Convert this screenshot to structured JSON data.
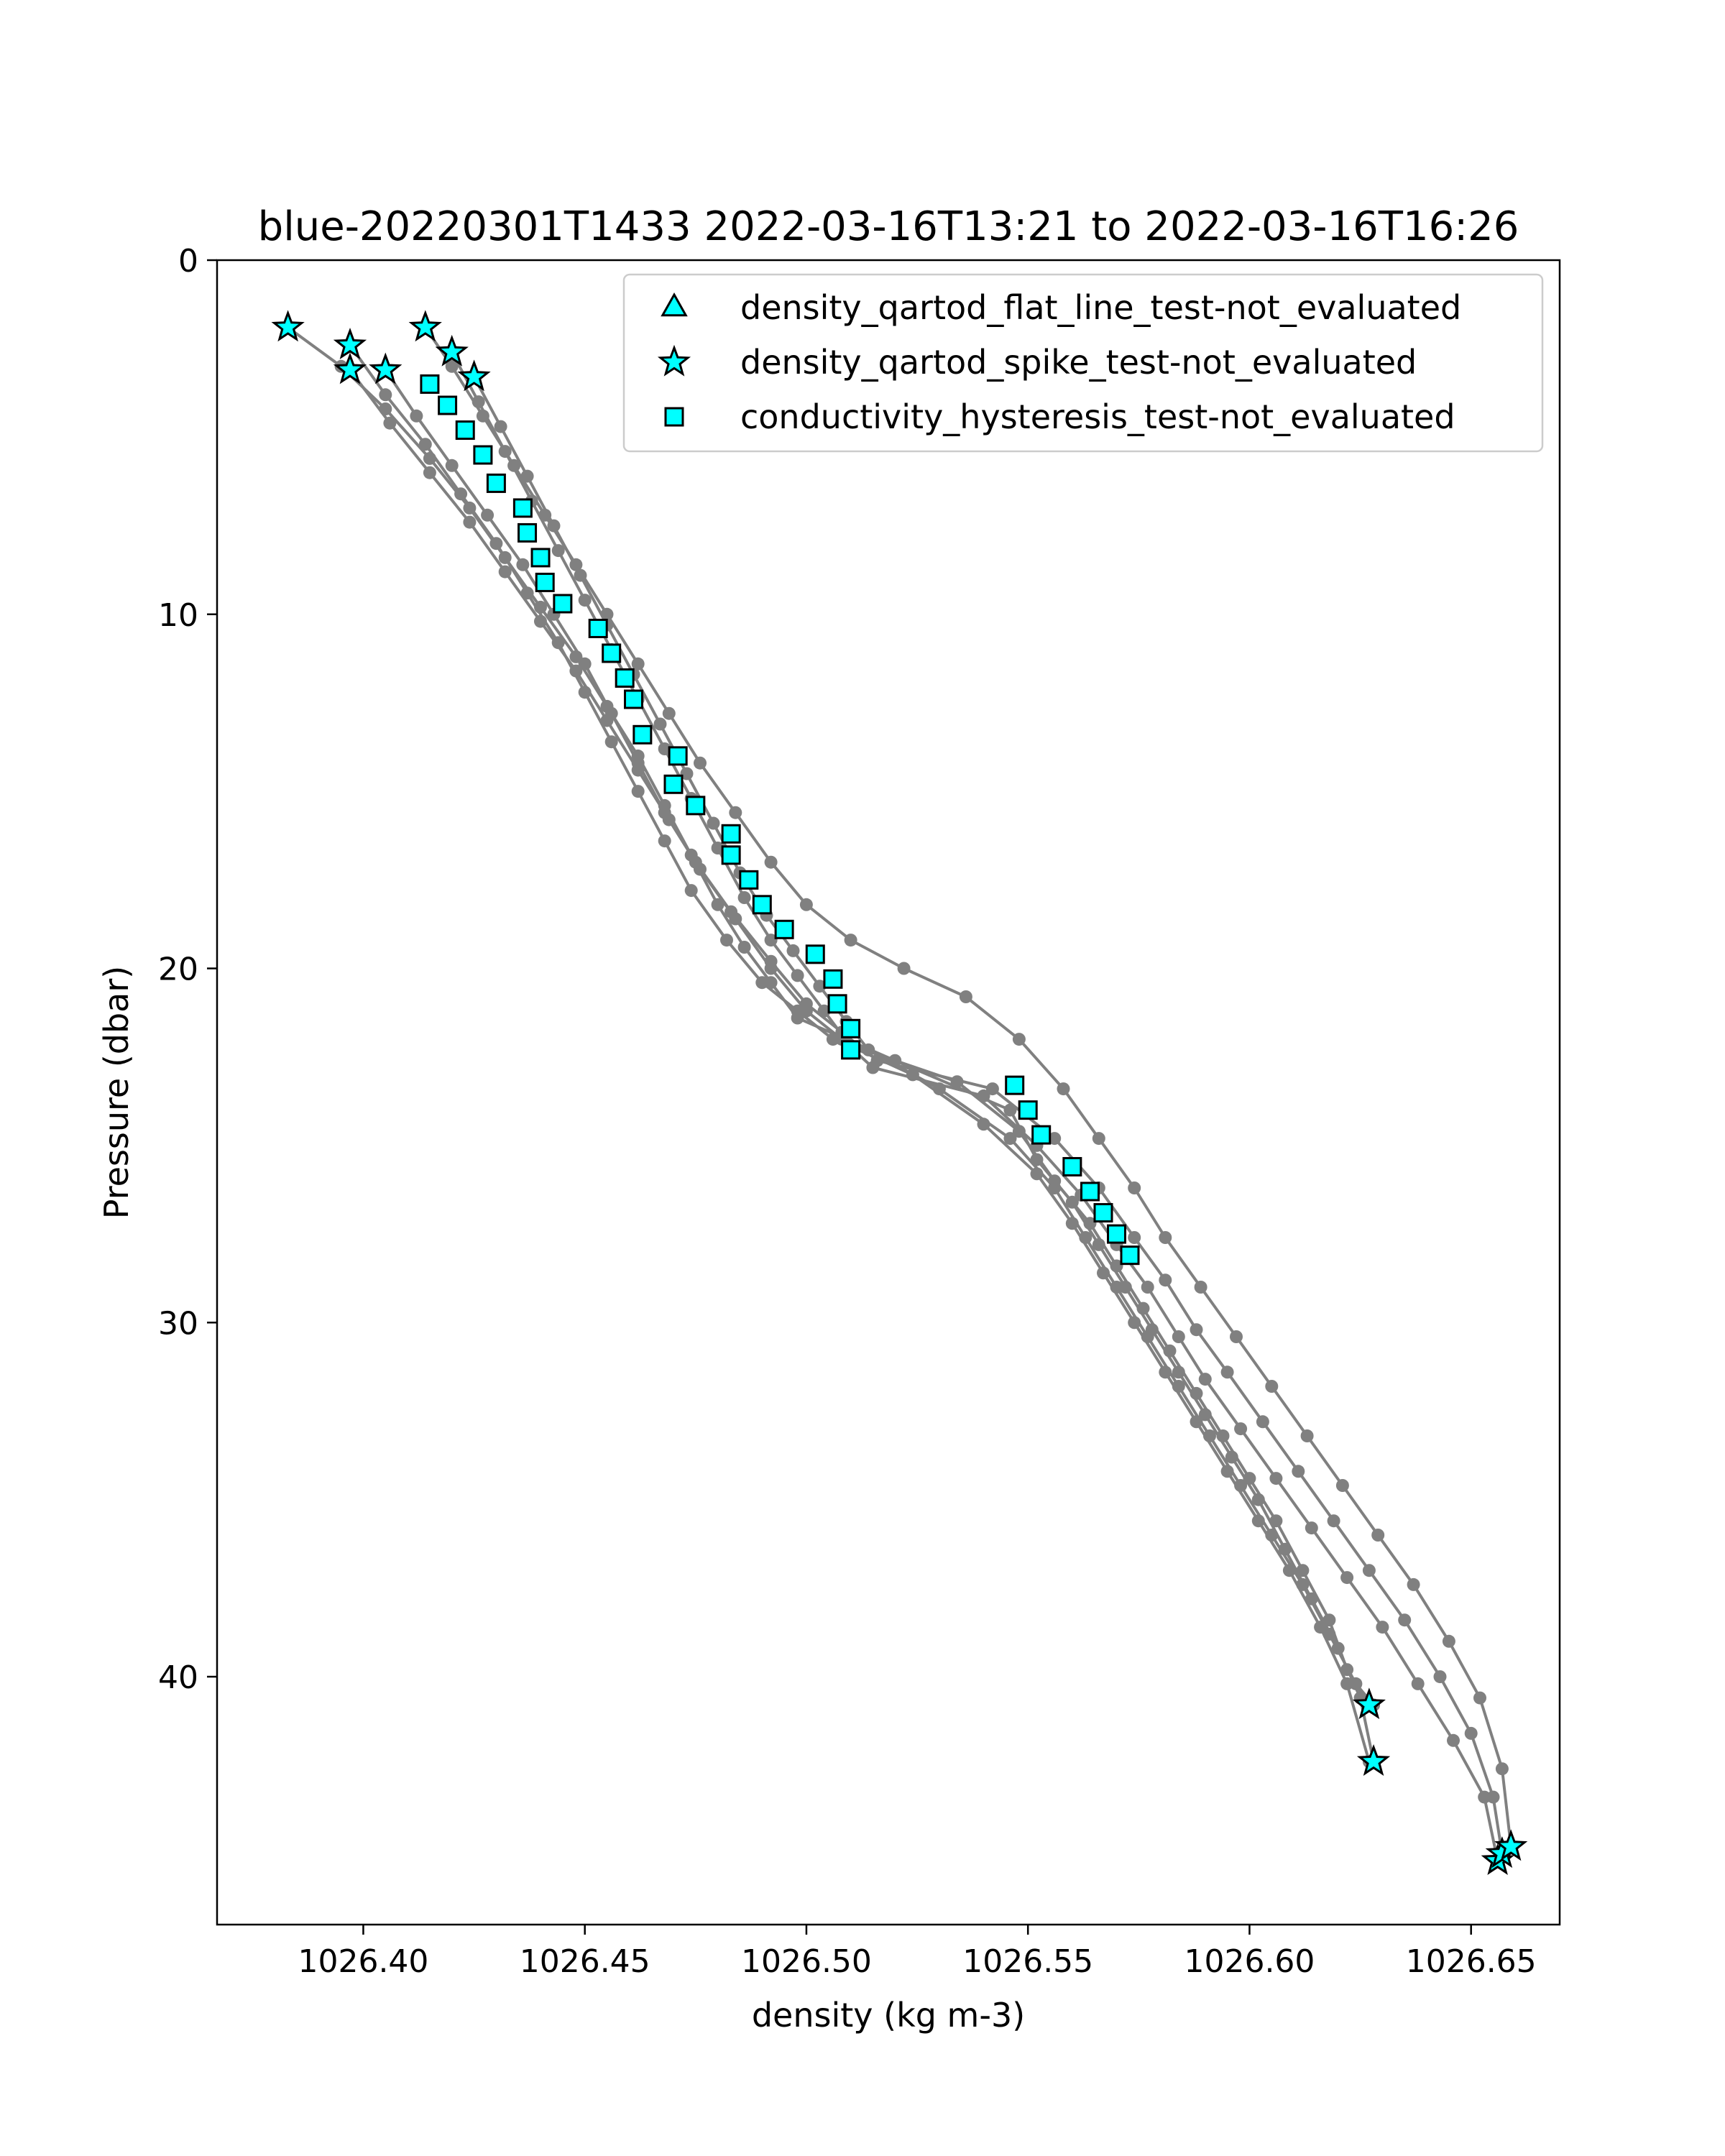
{
  "chart_data": {
    "type": "scatter",
    "title": "blue-20220301T1433 2022-03-16T13:21 to 2022-03-16T16:26",
    "xlabel": "density (kg m-3)",
    "ylabel": "Pressure (dbar)",
    "xlim": [
      1026.367,
      1026.67
    ],
    "ylim": [
      47,
      0
    ],
    "y_inverted": true,
    "grid": false,
    "legend_placement": "top-right",
    "x_ticks": [
      "1026.40",
      "1026.45",
      "1026.50",
      "1026.55",
      "1026.60",
      "1026.65"
    ],
    "x_tick_values": [
      1026.4,
      1026.45,
      1026.5,
      1026.55,
      1026.6,
      1026.65
    ],
    "y_ticks": [
      "0",
      "10",
      "20",
      "30",
      "40"
    ],
    "y_tick_values": [
      0,
      10,
      20,
      30,
      40
    ],
    "colors": {
      "profile": "#808080",
      "flag_fill": "#00ffff",
      "flag_edge": "#000000"
    },
    "series": [
      {
        "x": [
          1026.383,
          1026.395,
          1026.405,
          1026.415,
          1026.424,
          1026.432,
          1026.44,
          1026.448,
          1026.455,
          1026.462,
          1026.468,
          1026.474,
          1026.48,
          1026.486,
          1026.492,
          1026.498,
          1026.52,
          1026.546,
          1026.552,
          1026.56,
          1026.566,
          1026.572,
          1026.578,
          1026.584,
          1026.59,
          1026.596,
          1026.602,
          1026.608,
          1026.614,
          1026.62,
          1026.625,
          1026.628
        ],
        "y": [
          1.9,
          3.0,
          4.2,
          5.6,
          7.0,
          8.4,
          9.8,
          11.2,
          12.6,
          14.0,
          15.4,
          16.8,
          18.2,
          19.4,
          20.4,
          21.4,
          22.6,
          24.0,
          25.4,
          26.6,
          27.8,
          29.0,
          30.2,
          31.4,
          32.6,
          33.8,
          35.0,
          36.4,
          37.8,
          39.2,
          40.6,
          42.4
        ]
      },
      {
        "x": [
          1026.397,
          1026.405,
          1026.414,
          1026.422,
          1026.43,
          1026.437,
          1026.444,
          1026.45,
          1026.456,
          1026.462,
          1026.468,
          1026.474,
          1026.482,
          1026.49,
          1026.498,
          1026.506,
          1026.534,
          1026.548,
          1026.556,
          1026.564,
          1026.57,
          1026.576,
          1026.582,
          1026.588,
          1026.594,
          1026.6,
          1026.606,
          1026.612,
          1026.618,
          1026.622,
          1026.627
        ],
        "y": [
          2.4,
          3.8,
          5.2,
          6.6,
          8.0,
          9.4,
          10.8,
          12.2,
          13.6,
          15.0,
          16.4,
          17.8,
          19.2,
          20.4,
          21.2,
          22.0,
          23.2,
          24.6,
          26.0,
          27.2,
          28.4,
          29.6,
          30.8,
          32.0,
          33.2,
          34.4,
          35.6,
          37.0,
          38.4,
          39.8,
          40.8
        ]
      },
      {
        "x": [
          1026.397,
          1026.406,
          1026.415,
          1026.424,
          1026.432,
          1026.44,
          1026.448,
          1026.455,
          1026.462,
          1026.469,
          1026.476,
          1026.484,
          1026.492,
          1026.5,
          1026.508,
          1026.515,
          1026.54,
          1026.552,
          1026.562,
          1026.57,
          1026.577,
          1026.584,
          1026.59,
          1026.598,
          1026.606,
          1026.614,
          1026.622,
          1026.63,
          1026.638,
          1026.646,
          1026.653,
          1026.656
        ],
        "y": [
          3.1,
          4.6,
          6.0,
          7.4,
          8.8,
          10.2,
          11.6,
          13.0,
          14.4,
          15.8,
          17.2,
          18.6,
          20.0,
          21.2,
          22.0,
          22.8,
          23.6,
          25.0,
          26.4,
          27.8,
          29.0,
          30.4,
          31.6,
          33.0,
          34.4,
          35.8,
          37.2,
          38.6,
          40.2,
          41.8,
          43.4,
          45.2
        ]
      },
      {
        "x": [
          1026.405,
          1026.412,
          1026.42,
          1026.428,
          1026.436,
          1026.443,
          1026.45,
          1026.456,
          1026.462,
          1026.468,
          1026.475,
          1026.483,
          1026.492,
          1026.5,
          1026.508,
          1026.516,
          1026.542,
          1026.556,
          1026.566,
          1026.574,
          1026.581,
          1026.588,
          1026.595,
          1026.603,
          1026.611,
          1026.619,
          1026.627,
          1026.635,
          1026.643,
          1026.65,
          1026.655,
          1026.657
        ],
        "y": [
          3.1,
          4.4,
          5.8,
          7.2,
          8.6,
          10.0,
          11.4,
          12.8,
          14.2,
          15.6,
          17.0,
          18.4,
          19.8,
          21.0,
          21.8,
          22.6,
          23.4,
          24.8,
          26.2,
          27.6,
          28.8,
          30.2,
          31.4,
          32.8,
          34.2,
          35.6,
          37.0,
          38.4,
          40.0,
          41.6,
          43.4,
          45.0
        ]
      },
      {
        "x": [
          1026.414,
          1026.42,
          1026.427,
          1026.434,
          1026.441,
          1026.448,
          1026.455,
          1026.462,
          1026.469,
          1026.476,
          1026.484,
          1026.492,
          1026.5,
          1026.51,
          1026.522,
          1026.536,
          1026.548,
          1026.558,
          1026.566,
          1026.574,
          1026.581,
          1026.589,
          1026.597,
          1026.605,
          1026.613,
          1026.621,
          1026.629,
          1026.637,
          1026.645,
          1026.652,
          1026.657,
          1026.659
        ],
        "y": [
          1.9,
          3.0,
          4.4,
          5.8,
          7.2,
          8.6,
          10.0,
          11.4,
          12.8,
          14.2,
          15.6,
          17.0,
          18.2,
          19.2,
          20.0,
          20.8,
          22.0,
          23.4,
          24.8,
          26.2,
          27.6,
          29.0,
          30.4,
          31.8,
          33.2,
          34.6,
          36.0,
          37.4,
          39.0,
          40.6,
          42.6,
          44.8
        ]
      },
      {
        "x": [
          1026.42,
          1026.426,
          1026.432,
          1026.438,
          1026.444,
          1026.45,
          1026.456,
          1026.462,
          1026.468,
          1026.474,
          1026.48,
          1026.486,
          1026.492,
          1026.498,
          1026.504,
          1026.51,
          1026.524,
          1026.54,
          1026.552,
          1026.56,
          1026.567,
          1026.574,
          1026.581,
          1026.588,
          1026.595,
          1026.602,
          1026.609,
          1026.616,
          1026.622,
          1026.627
        ],
        "y": [
          2.6,
          4.0,
          5.4,
          6.8,
          8.2,
          9.6,
          11.0,
          12.4,
          13.8,
          15.2,
          16.6,
          18.0,
          19.2,
          20.2,
          21.2,
          22.2,
          23.0,
          24.4,
          25.8,
          27.2,
          28.6,
          30.0,
          31.4,
          32.8,
          34.2,
          35.6,
          37.0,
          38.6,
          40.2,
          42.4
        ]
      },
      {
        "x": [
          1026.425,
          1026.431,
          1026.437,
          1026.443,
          1026.449,
          1026.455,
          1026.461,
          1026.467,
          1026.473,
          1026.479,
          1026.485,
          1026.491,
          1026.497,
          1026.503,
          1026.509,
          1026.514,
          1026.53,
          1026.546,
          1026.556,
          1026.563,
          1026.57,
          1026.577,
          1026.584,
          1026.591,
          1026.598,
          1026.605,
          1026.612,
          1026.618,
          1026.624,
          1026.628
        ],
        "y": [
          3.3,
          4.7,
          6.1,
          7.5,
          8.9,
          10.3,
          11.7,
          13.1,
          14.5,
          15.9,
          17.3,
          18.5,
          19.5,
          20.5,
          21.5,
          22.3,
          23.4,
          24.8,
          26.2,
          27.6,
          29.0,
          30.4,
          31.8,
          33.2,
          34.6,
          36.0,
          37.4,
          38.8,
          40.2,
          40.8
        ]
      }
    ],
    "flags": [
      {
        "name": "density_qartod_flat_line_test-not_evaluated",
        "marker": "triangle",
        "x": [],
        "y": []
      },
      {
        "name": "density_qartod_spike_test-not_evaluated",
        "marker": "star",
        "x": [
          1026.383,
          1026.397,
          1026.397,
          1026.405,
          1026.414,
          1026.42,
          1026.425,
          1026.627,
          1026.628,
          1026.656,
          1026.657,
          1026.659
        ],
        "y": [
          1.9,
          2.4,
          3.1,
          3.1,
          1.9,
          2.6,
          3.3,
          40.8,
          42.4,
          45.2,
          45.0,
          44.8
        ]
      },
      {
        "name": "conductivity_hysteresis_test-not_evaluated",
        "marker": "square",
        "x": [
          1026.415,
          1026.419,
          1026.423,
          1026.427,
          1026.43,
          1026.436,
          1026.437,
          1026.44,
          1026.441,
          1026.445,
          1026.453,
          1026.456,
          1026.459,
          1026.461,
          1026.463,
          1026.471,
          1026.47,
          1026.475,
          1026.483,
          1026.483,
          1026.487,
          1026.49,
          1026.495,
          1026.502,
          1026.506,
          1026.507,
          1026.51,
          1026.51,
          1026.547,
          1026.55,
          1026.553,
          1026.56,
          1026.564,
          1026.567,
          1026.57,
          1026.573
        ],
        "y": [
          3.5,
          4.1,
          4.8,
          5.5,
          6.3,
          7.0,
          7.7,
          8.4,
          9.1,
          9.7,
          10.4,
          11.1,
          11.8,
          12.4,
          13.4,
          14.0,
          14.8,
          15.4,
          16.2,
          16.8,
          17.5,
          18.2,
          18.9,
          19.6,
          20.3,
          21.0,
          21.7,
          22.3,
          23.3,
          24.0,
          24.7,
          25.6,
          26.3,
          26.9,
          27.5,
          28.1
        ]
      }
    ]
  }
}
